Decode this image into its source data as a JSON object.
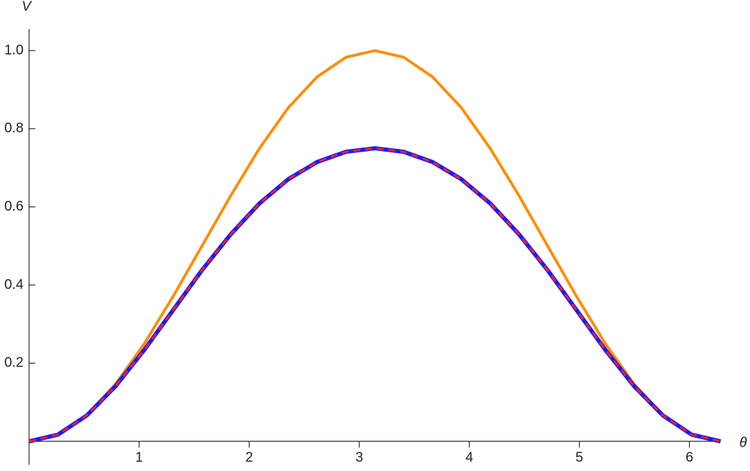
{
  "chart_data": {
    "type": "line",
    "xlabel": "θ",
    "ylabel": "V",
    "x": [
      0,
      0.262,
      0.524,
      0.785,
      1.047,
      1.309,
      1.571,
      1.833,
      2.094,
      2.356,
      2.618,
      2.88,
      3.142,
      3.403,
      3.665,
      3.927,
      4.189,
      4.451,
      4.712,
      4.974,
      5.236,
      5.498,
      5.76,
      6.021,
      6.283
    ],
    "series": [
      {
        "color": "#ff8c00",
        "width": 4,
        "dash": false,
        "values": [
          0,
          0.017,
          0.067,
          0.146,
          0.25,
          0.371,
          0.5,
          0.629,
          0.75,
          0.854,
          0.933,
          0.983,
          1,
          0.983,
          0.933,
          0.854,
          0.75,
          0.629,
          0.5,
          0.371,
          0.25,
          0.146,
          0.067,
          0.017,
          0
        ]
      },
      {
        "color": "#1a1aff",
        "width": 6,
        "dash": false,
        "values": [
          0,
          0.017,
          0.066,
          0.141,
          0.234,
          0.336,
          0.438,
          0.53,
          0.609,
          0.671,
          0.715,
          0.741,
          0.75,
          0.741,
          0.715,
          0.671,
          0.609,
          0.53,
          0.438,
          0.336,
          0.234,
          0.141,
          0.066,
          0.017,
          0
        ]
      },
      {
        "color": "#ff2020",
        "width": 3,
        "dash": true,
        "values": [
          0,
          0.017,
          0.066,
          0.141,
          0.234,
          0.336,
          0.438,
          0.53,
          0.609,
          0.671,
          0.715,
          0.741,
          0.75,
          0.741,
          0.715,
          0.671,
          0.609,
          0.53,
          0.438,
          0.336,
          0.234,
          0.141,
          0.066,
          0.017,
          0
        ]
      }
    ],
    "xlim": [
      0,
      6.28
    ],
    "ylim": [
      -0.06,
      1.055
    ],
    "xticks": [
      1,
      2,
      3,
      4,
      5,
      6
    ],
    "yticks": [
      0.2,
      0.4,
      0.6,
      0.8,
      {
        "value": 1,
        "label": "1.0"
      }
    ]
  }
}
